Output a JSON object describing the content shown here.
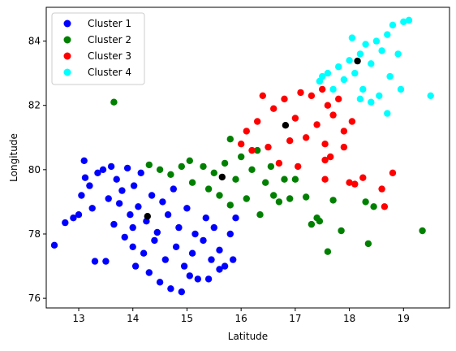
{
  "chart_data": {
    "type": "scatter",
    "title": "",
    "xlabel": "Latitude",
    "ylabel": "Longitude",
    "xlim": [
      12.4,
      19.85
    ],
    "ylim": [
      75.7,
      85.05
    ],
    "xticks": [
      13,
      14,
      15,
      16,
      17,
      18,
      19
    ],
    "yticks": [
      76,
      78,
      80,
      82,
      84
    ],
    "grid": false,
    "legend_position": "top-left",
    "series": [
      {
        "name": "Cluster 1",
        "color": "#0000ff",
        "points": [
          [
            12.55,
            77.65
          ],
          [
            12.75,
            78.35
          ],
          [
            12.9,
            78.5
          ],
          [
            13.0,
            78.6
          ],
          [
            13.05,
            79.2
          ],
          [
            13.1,
            80.28
          ],
          [
            13.12,
            79.75
          ],
          [
            13.2,
            79.5
          ],
          [
            13.25,
            78.8
          ],
          [
            13.3,
            77.15
          ],
          [
            13.35,
            79.9
          ],
          [
            13.45,
            80.0
          ],
          [
            13.5,
            77.15
          ],
          [
            13.55,
            79.1
          ],
          [
            13.6,
            80.1
          ],
          [
            13.65,
            78.3
          ],
          [
            13.7,
            79.7
          ],
          [
            13.75,
            78.95
          ],
          [
            13.8,
            79.35
          ],
          [
            13.85,
            77.9
          ],
          [
            13.9,
            80.05
          ],
          [
            13.95,
            78.6
          ],
          [
            14.0,
            77.6
          ],
          [
            14.02,
            79.5
          ],
          [
            14.05,
            77.0
          ],
          [
            14.1,
            78.85
          ],
          [
            14.15,
            79.9
          ],
          [
            14.2,
            77.4
          ],
          [
            14.25,
            78.4
          ],
          [
            14.3,
            76.8
          ],
          [
            14.35,
            79.2
          ],
          [
            14.4,
            77.8
          ],
          [
            14.45,
            78.05
          ],
          [
            14.5,
            76.5
          ],
          [
            14.55,
            79.0
          ],
          [
            14.6,
            77.2
          ],
          [
            14.65,
            78.6
          ],
          [
            14.7,
            76.3
          ],
          [
            14.75,
            79.4
          ],
          [
            14.8,
            77.6
          ],
          [
            14.85,
            78.2
          ],
          [
            14.9,
            76.2
          ],
          [
            14.95,
            77.0
          ],
          [
            15.0,
            78.8
          ],
          [
            15.05,
            76.7
          ],
          [
            15.1,
            77.4
          ],
          [
            15.15,
            78.0
          ],
          [
            15.2,
            76.6
          ],
          [
            15.3,
            77.8
          ],
          [
            15.35,
            78.5
          ],
          [
            15.4,
            76.6
          ],
          [
            15.45,
            77.2
          ],
          [
            15.5,
            78.2
          ],
          [
            15.6,
            77.5
          ],
          [
            15.7,
            77.0
          ],
          [
            15.8,
            78.0
          ],
          [
            15.85,
            77.2
          ],
          [
            15.9,
            78.5
          ],
          [
            15.6,
            76.9
          ],
          [
            14.0,
            78.2
          ]
        ]
      },
      {
        "name": "Cluster 2",
        "color": "#008000",
        "points": [
          [
            13.65,
            82.1
          ],
          [
            14.3,
            80.15
          ],
          [
            14.5,
            80.0
          ],
          [
            14.7,
            79.85
          ],
          [
            14.9,
            80.1
          ],
          [
            15.05,
            80.28
          ],
          [
            15.1,
            79.6
          ],
          [
            15.3,
            80.1
          ],
          [
            15.4,
            79.4
          ],
          [
            15.5,
            79.9
          ],
          [
            15.6,
            79.2
          ],
          [
            15.7,
            80.2
          ],
          [
            15.8,
            78.9
          ],
          [
            15.9,
            79.7
          ],
          [
            16.0,
            80.4
          ],
          [
            16.1,
            79.1
          ],
          [
            16.2,
            80.0
          ],
          [
            16.3,
            80.6
          ],
          [
            16.35,
            78.6
          ],
          [
            16.45,
            79.6
          ],
          [
            16.55,
            80.1
          ],
          [
            16.6,
            79.2
          ],
          [
            16.7,
            79.0
          ],
          [
            16.8,
            79.7
          ],
          [
            16.9,
            79.1
          ],
          [
            17.0,
            79.7
          ],
          [
            17.2,
            79.15
          ],
          [
            17.3,
            78.3
          ],
          [
            17.4,
            78.5
          ],
          [
            17.45,
            78.4
          ],
          [
            17.6,
            77.45
          ],
          [
            17.7,
            79.05
          ],
          [
            17.85,
            78.1
          ],
          [
            18.3,
            79.0
          ],
          [
            18.35,
            77.7
          ],
          [
            18.45,
            78.85
          ],
          [
            19.35,
            78.1
          ],
          [
            15.8,
            80.95
          ]
        ]
      },
      {
        "name": "Cluster 3",
        "color": "#ff0000",
        "points": [
          [
            16.0,
            80.8
          ],
          [
            16.1,
            81.2
          ],
          [
            16.2,
            80.6
          ],
          [
            16.3,
            81.5
          ],
          [
            16.4,
            82.3
          ],
          [
            16.5,
            80.7
          ],
          [
            16.6,
            81.9
          ],
          [
            16.7,
            80.2
          ],
          [
            16.8,
            82.2
          ],
          [
            16.9,
            80.9
          ],
          [
            17.0,
            81.6
          ],
          [
            17.05,
            80.1
          ],
          [
            17.1,
            82.4
          ],
          [
            17.2,
            81.0
          ],
          [
            17.3,
            82.3
          ],
          [
            17.4,
            81.4
          ],
          [
            17.5,
            82.5
          ],
          [
            17.55,
            80.8
          ],
          [
            17.6,
            82.0
          ],
          [
            17.65,
            80.4
          ],
          [
            17.7,
            81.7
          ],
          [
            17.8,
            82.2
          ],
          [
            17.9,
            81.2
          ],
          [
            17.55,
            80.3
          ],
          [
            17.55,
            79.7
          ],
          [
            18.0,
            79.6
          ],
          [
            18.1,
            79.55
          ],
          [
            18.25,
            79.75
          ],
          [
            18.6,
            79.4
          ],
          [
            18.65,
            78.85
          ],
          [
            18.8,
            79.9
          ],
          [
            18.05,
            81.5
          ],
          [
            17.9,
            80.7
          ]
        ]
      },
      {
        "name": "Cluster 4",
        "color": "#00ffff",
        "points": [
          [
            17.45,
            82.75
          ],
          [
            17.5,
            82.9
          ],
          [
            17.6,
            83.0
          ],
          [
            17.7,
            82.5
          ],
          [
            17.8,
            83.2
          ],
          [
            17.9,
            82.8
          ],
          [
            18.0,
            83.4
          ],
          [
            18.05,
            84.1
          ],
          [
            18.1,
            83.0
          ],
          [
            18.2,
            83.6
          ],
          [
            18.25,
            82.5
          ],
          [
            18.3,
            83.9
          ],
          [
            18.4,
            83.3
          ],
          [
            18.5,
            84.0
          ],
          [
            18.55,
            82.3
          ],
          [
            18.6,
            83.7
          ],
          [
            18.7,
            84.2
          ],
          [
            18.75,
            82.9
          ],
          [
            18.8,
            84.5
          ],
          [
            18.9,
            83.6
          ],
          [
            19.0,
            84.6
          ],
          [
            19.1,
            84.65
          ],
          [
            18.95,
            82.5
          ],
          [
            19.5,
            82.3
          ],
          [
            18.7,
            81.75
          ],
          [
            18.4,
            82.1
          ],
          [
            18.2,
            82.2
          ]
        ]
      }
    ],
    "centroids": {
      "color": "#000000",
      "points": [
        [
          14.27,
          78.55
        ],
        [
          15.65,
          79.77
        ],
        [
          16.82,
          81.38
        ],
        [
          18.15,
          83.38
        ]
      ]
    }
  }
}
